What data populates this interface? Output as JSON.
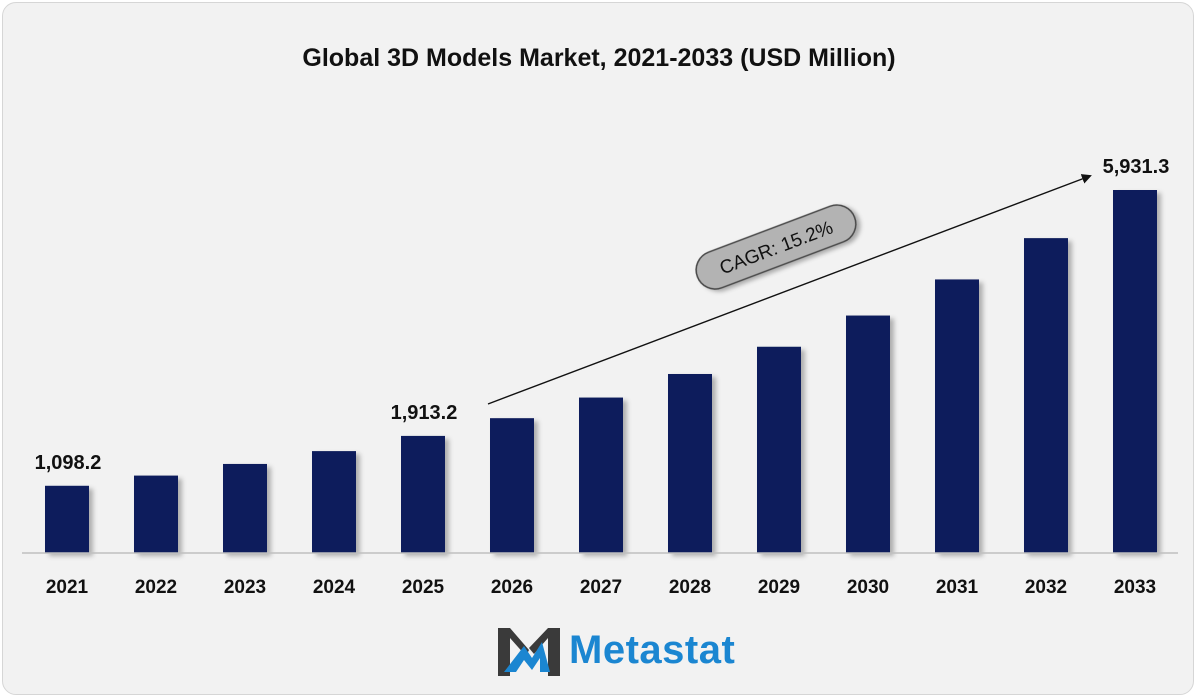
{
  "chart_data": {
    "type": "bar",
    "title": "Global 3D Models Market, 2021-2033 (USD Million)",
    "categories": [
      "2021",
      "2022",
      "2023",
      "2024",
      "2025",
      "2026",
      "2027",
      "2028",
      "2029",
      "2030",
      "2031",
      "2032",
      "2033"
    ],
    "values": [
      1098.2,
      1265,
      1455,
      1665,
      1913.2,
      2203,
      2540,
      2925,
      3370,
      3880,
      4470,
      5145,
      5931.3
    ],
    "data_labels": [
      {
        "index": 0,
        "text": "1,098.2"
      },
      {
        "index": 4,
        "text": "1,913.2"
      },
      {
        "index": 12,
        "text": "5,931.3"
      }
    ],
    "annotation": "CAGR: 15.2%",
    "ylim": [
      0,
      6000
    ],
    "bar_color": "#0d1f5c",
    "grid": false,
    "legend": "none"
  },
  "brand": {
    "name": "Metastat",
    "text_color": "#1b86d1",
    "mark_colors": [
      "#3a3a3a",
      "#1b86d1"
    ]
  }
}
